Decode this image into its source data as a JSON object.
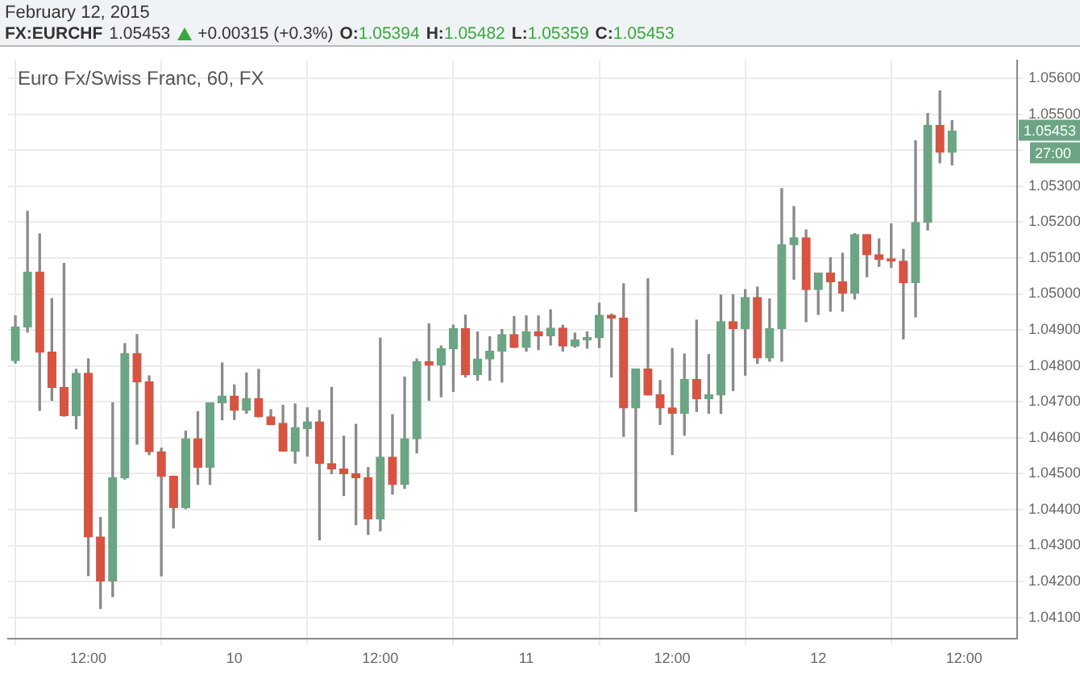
{
  "chart_data": {
    "type": "candlestick",
    "title": "FX:EURCHF",
    "subtitle": "February 12, 2015",
    "annotations": [
      "1.05453",
      "+0.00315 (+0.3%)",
      "O:1.05394",
      "H:1.05482",
      "L:1.05359",
      "C:1.05453",
      "Euro Fx/Swiss Franc, 60, FX",
      {
        "text": "1.05453",
        "y": 1.05453
      },
      "27:00"
    ],
    "x": [
      "2015-02-09T06:00",
      "2015-02-09T07:00",
      "2015-02-09T08:00",
      "2015-02-09T09:00",
      "2015-02-09T10:00",
      "2015-02-09T11:00",
      "2015-02-09T12:00",
      "2015-02-09T13:00",
      "2015-02-09T14:00",
      "2015-02-09T15:00",
      "2015-02-09T16:00",
      "2015-02-09T17:00",
      "2015-02-09T18:00",
      "2015-02-09T19:00",
      "2015-02-09T20:00",
      "2015-02-09T21:00",
      "2015-02-09T22:00",
      "2015-02-09T23:00",
      "2015-02-10T00:00",
      "2015-02-10T01:00",
      "2015-02-10T02:00",
      "2015-02-10T03:00",
      "2015-02-10T04:00",
      "2015-02-10T05:00",
      "2015-02-10T06:00",
      "2015-02-10T07:00",
      "2015-02-10T08:00",
      "2015-02-10T09:00",
      "2015-02-10T10:00",
      "2015-02-10T11:00",
      "2015-02-10T12:00",
      "2015-02-10T13:00",
      "2015-02-10T14:00",
      "2015-02-10T15:00",
      "2015-02-10T16:00",
      "2015-02-10T17:00",
      "2015-02-10T18:00",
      "2015-02-10T19:00",
      "2015-02-10T20:00",
      "2015-02-10T21:00",
      "2015-02-10T22:00",
      "2015-02-10T23:00",
      "2015-02-11T00:00",
      "2015-02-11T01:00",
      "2015-02-11T02:00",
      "2015-02-11T03:00",
      "2015-02-11T04:00",
      "2015-02-11T05:00",
      "2015-02-11T06:00",
      "2015-02-11T07:00",
      "2015-02-11T08:00",
      "2015-02-11T09:00",
      "2015-02-11T10:00",
      "2015-02-11T11:00",
      "2015-02-11T12:00",
      "2015-02-11T13:00",
      "2015-02-11T14:00",
      "2015-02-11T15:00",
      "2015-02-11T16:00",
      "2015-02-11T17:00",
      "2015-02-11T18:00",
      "2015-02-11T19:00",
      "2015-02-11T20:00",
      "2015-02-11T21:00",
      "2015-02-11T22:00",
      "2015-02-11T23:00",
      "2015-02-12T00:00",
      "2015-02-12T01:00",
      "2015-02-12T02:00",
      "2015-02-12T03:00",
      "2015-02-12T04:00",
      "2015-02-12T05:00",
      "2015-02-12T06:00",
      "2015-02-12T07:00",
      "2015-02-12T08:00",
      "2015-02-12T09:00",
      "2015-02-12T10:00",
      "2015-02-12T11:00"
    ],
    "ohlc": [
      [
        1.04815,
        1.04939,
        1.04808,
        1.04908
      ],
      [
        1.04908,
        1.0523,
        1.04894,
        1.05061
      ],
      [
        1.05061,
        1.05167,
        1.04676,
        1.04838
      ],
      [
        1.04838,
        1.04987,
        1.04704,
        1.0474
      ],
      [
        1.0474,
        1.05085,
        1.0466,
        1.04661
      ],
      [
        1.04661,
        1.0479,
        1.04625,
        1.04779
      ],
      [
        1.04779,
        1.04819,
        1.04216,
        1.04324
      ],
      [
        1.04324,
        1.04378,
        1.04125,
        1.04201
      ],
      [
        1.04201,
        1.04697,
        1.04158,
        1.04489
      ],
      [
        1.04489,
        1.04862,
        1.04485,
        1.04834
      ],
      [
        1.04834,
        1.04887,
        1.04582,
        1.04755
      ],
      [
        1.04755,
        1.04772,
        1.04553,
        1.04561
      ],
      [
        1.04561,
        1.04571,
        1.04216,
        1.04493
      ],
      [
        1.04493,
        1.04493,
        1.04349,
        1.04405
      ],
      [
        1.04405,
        1.04618,
        1.04403,
        1.04597
      ],
      [
        1.04597,
        1.04672,
        1.0447,
        1.04518
      ],
      [
        1.04518,
        1.04697,
        1.0447,
        1.04697
      ],
      [
        1.04697,
        1.04808,
        1.0465,
        1.04716
      ],
      [
        1.04716,
        1.04747,
        1.04651,
        1.04676
      ],
      [
        1.04676,
        1.0478,
        1.04668,
        1.04709
      ],
      [
        1.04709,
        1.0479,
        1.04658,
        1.04658
      ],
      [
        1.04658,
        1.04678,
        1.04637,
        1.04637
      ],
      [
        1.0464,
        1.0469,
        1.04563,
        1.04563
      ],
      [
        1.04563,
        1.04694,
        1.04529,
        1.04628
      ],
      [
        1.04625,
        1.04683,
        1.04549,
        1.04644
      ],
      [
        1.04644,
        1.04676,
        1.04316,
        1.04528
      ],
      [
        1.04528,
        1.0474,
        1.045,
        1.04513
      ],
      [
        1.04513,
        1.04604,
        1.04439,
        1.045
      ],
      [
        1.045,
        1.04637,
        1.04358,
        1.04489
      ],
      [
        1.04489,
        1.04517,
        1.04331,
        1.04374
      ],
      [
        1.04374,
        1.04877,
        1.04341,
        1.04546
      ],
      [
        1.04546,
        1.04664,
        1.04443,
        1.0447
      ],
      [
        1.0447,
        1.04769,
        1.04459,
        1.04597
      ],
      [
        1.04597,
        1.04819,
        1.04558,
        1.04812
      ],
      [
        1.04812,
        1.04917,
        1.04704,
        1.04802
      ],
      [
        1.04802,
        1.04855,
        1.04714,
        1.04848
      ],
      [
        1.04848,
        1.04913,
        1.04729,
        1.04903
      ],
      [
        1.04903,
        1.04941,
        1.04769,
        1.04776
      ],
      [
        1.04776,
        1.04894,
        1.0476,
        1.04819
      ],
      [
        1.04819,
        1.04881,
        1.0476,
        1.04841
      ],
      [
        1.04841,
        1.04901,
        1.04755,
        1.04887
      ],
      [
        1.04887,
        1.04937,
        1.04851,
        1.04851
      ],
      [
        1.04851,
        1.04939,
        1.04841,
        1.04895
      ],
      [
        1.04895,
        1.04939,
        1.04845,
        1.04884
      ],
      [
        1.04884,
        1.04956,
        1.04858,
        1.04905
      ],
      [
        1.04905,
        1.04913,
        1.04841,
        1.04855
      ],
      [
        1.04855,
        1.04891,
        1.04852,
        1.04872
      ],
      [
        1.04872,
        1.04894,
        1.04849,
        1.04878
      ],
      [
        1.04878,
        1.04974,
        1.04851,
        1.04941
      ],
      [
        1.04941,
        1.04944,
        1.04769,
        1.04933
      ],
      [
        1.04933,
        1.05028,
        1.04604,
        1.04683
      ],
      [
        1.04683,
        1.04791,
        1.04395,
        1.04791
      ],
      [
        1.04791,
        1.05042,
        1.04719,
        1.04719
      ],
      [
        1.04719,
        1.04759,
        1.04637,
        1.04683
      ],
      [
        1.04683,
        1.04848,
        1.04553,
        1.04668
      ],
      [
        1.04668,
        1.04833,
        1.04607,
        1.04762
      ],
      [
        1.04762,
        1.04927,
        1.04673,
        1.04709
      ],
      [
        1.04709,
        1.04831,
        1.04668,
        1.04719
      ],
      [
        1.04719,
        1.04997,
        1.04668,
        1.04923
      ],
      [
        1.04923,
        1.04998,
        1.04731,
        1.04904
      ],
      [
        1.04904,
        1.05012,
        1.04774,
        1.0499
      ],
      [
        1.0499,
        1.05019,
        1.04807,
        1.04822
      ],
      [
        1.04822,
        1.04986,
        1.04813,
        1.04904
      ],
      [
        1.04904,
        1.05293,
        1.04813,
        1.05137
      ],
      [
        1.05137,
        1.05243,
        1.05041,
        1.05156
      ],
      [
        1.05156,
        1.05178,
        1.04923,
        1.05012
      ],
      [
        1.05012,
        1.05058,
        1.04943,
        1.05058
      ],
      [
        1.05058,
        1.05101,
        1.04952,
        1.05034
      ],
      [
        1.05034,
        1.05113,
        1.04952,
        1.05002
      ],
      [
        1.05002,
        1.05168,
        1.04986,
        1.05165
      ],
      [
        1.05165,
        1.05165,
        1.05048,
        1.05109
      ],
      [
        1.05109,
        1.05153,
        1.05077,
        1.05096
      ],
      [
        1.05096,
        1.05195,
        1.05074,
        1.05091
      ],
      [
        1.05091,
        1.05124,
        1.04875,
        1.05031
      ],
      [
        1.05031,
        1.05426,
        1.04936,
        1.05199
      ],
      [
        1.05199,
        1.05502,
        1.05178,
        1.05469
      ],
      [
        1.05469,
        1.05565,
        1.05365,
        1.05394
      ],
      [
        1.05394,
        1.05482,
        1.05359,
        1.05453
      ]
    ],
    "colors": [
      "#6ba583",
      "#6ba583",
      "#d75442",
      "#d75442",
      "#d75442",
      "#6ba583",
      "#d75442",
      "#d75442",
      "#6ba583",
      "#6ba583",
      "#d75442",
      "#d75442",
      "#d75442",
      "#d75442",
      "#6ba583",
      "#d75442",
      "#6ba583",
      "#6ba583",
      "#d75442",
      "#6ba583",
      "#d75442",
      "#d75442",
      "#d75442",
      "#6ba583",
      "#6ba583",
      "#d75442",
      "#d75442",
      "#d75442",
      "#d75442",
      "#d75442",
      "#6ba583",
      "#d75442",
      "#6ba583",
      "#6ba583",
      "#d75442",
      "#6ba583",
      "#6ba583",
      "#d75442",
      "#6ba583",
      "#6ba583",
      "#6ba583",
      "#d75442",
      "#6ba583",
      "#d75442",
      "#6ba583",
      "#d75442",
      "#6ba583",
      "#6ba583",
      "#6ba583",
      "#d75442",
      "#d75442",
      "#6ba583",
      "#d75442",
      "#d75442",
      "#d75442",
      "#6ba583",
      "#d75442",
      "#6ba583",
      "#6ba583",
      "#d75442",
      "#6ba583",
      "#d75442",
      "#6ba583",
      "#6ba583",
      "#6ba583",
      "#d75442",
      "#6ba583",
      "#d75442",
      "#d75442",
      "#6ba583",
      "#d75442",
      "#d75442",
      "#d75442",
      "#d75442",
      "#6ba583",
      "#6ba583",
      "#d75442",
      "#6ba583"
    ],
    "xlim": [
      "2015-02-09T05:24",
      "2015-02-12T16:21"
    ],
    "xticks": [
      {
        "value": "2015-02-09T12:00",
        "label": "12:00"
      },
      {
        "value": "2015-02-10T00:00",
        "label": "10"
      },
      {
        "value": "2015-02-10T12:00",
        "label": "12:00"
      },
      {
        "value": "2015-02-11T00:00",
        "label": "11"
      },
      {
        "value": "2015-02-11T12:00",
        "label": "12:00"
      },
      {
        "value": "2015-02-12T00:00",
        "label": "12"
      },
      {
        "value": "2015-02-12T12:00",
        "label": "12:00"
      }
    ],
    "ylim": [
      1.0404,
      1.0565
    ],
    "yticks": [
      {
        "value": 1.041,
        "label": "1.04100"
      },
      {
        "value": 1.042,
        "label": "1.04200"
      },
      {
        "value": 1.043,
        "label": "1.04300"
      },
      {
        "value": 1.044,
        "label": "1.04400"
      },
      {
        "value": 1.045,
        "label": "1.04500"
      },
      {
        "value": 1.046,
        "label": "1.04600"
      },
      {
        "value": 1.047,
        "label": "1.04700"
      },
      {
        "value": 1.048,
        "label": "1.04800"
      },
      {
        "value": 1.049,
        "label": "1.04900"
      },
      {
        "value": 1.05,
        "label": "1.05000"
      },
      {
        "value": 1.051,
        "label": "1.05100"
      },
      {
        "value": 1.052,
        "label": "1.05200"
      },
      {
        "value": 1.053,
        "label": "1.05300"
      },
      {
        "value": 1.054,
        "label": null
      },
      {
        "value": 1.055,
        "label": "1.05500"
      },
      {
        "value": 1.056,
        "label": "1.05600"
      }
    ],
    "grid": true,
    "legend": false
  }
}
